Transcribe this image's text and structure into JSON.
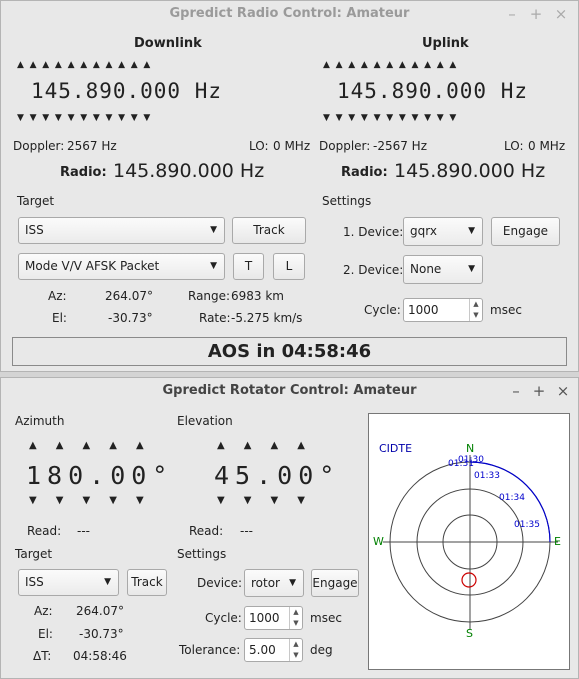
{
  "radio_window": {
    "title": "Gpredict Radio Control: Amateur",
    "controls": [
      "–",
      "+",
      "×"
    ],
    "downlink": {
      "heading": "Downlink",
      "frequency": "145.890.000 Hz",
      "doppler_label": "Doppler:",
      "doppler_value": "2567 Hz",
      "lo_label": "LO:",
      "lo_value": "0 MHz",
      "radio_label": "Radio:",
      "radio_value": "145.890.000 Hz"
    },
    "uplink": {
      "heading": "Uplink",
      "frequency": "145.890.000 Hz",
      "doppler_label": "Doppler:",
      "doppler_value": "-2567 Hz",
      "lo_label": "LO:",
      "lo_value": "0 MHz",
      "radio_label": "Radio:",
      "radio_value": "145.890.000 Hz"
    },
    "target": {
      "heading": "Target",
      "satellite": "ISS",
      "track_button": "Track",
      "transponder": "Mode V/V AFSK Packet",
      "t_button": "T",
      "l_button": "L",
      "az_label": "Az:",
      "az_value": "264.07°",
      "el_label": "El:",
      "el_value": "-30.73°",
      "range_label": "Range:",
      "range_value": "6983 km",
      "rate_label": "Rate:",
      "rate_value": "-5.275 km/s"
    },
    "settings": {
      "heading": "Settings",
      "device1_label": "1. Device:",
      "device1_value": "gqrx",
      "engage_button": "Engage",
      "device2_label": "2. Device:",
      "device2_value": "None",
      "cycle_label": "Cycle:",
      "cycle_value": "1000",
      "cycle_unit": "msec"
    },
    "status": "AOS in 04:58:46"
  },
  "rotator_window": {
    "title": "Gpredict Rotator Control: Amateur",
    "controls": [
      "–",
      "+",
      "×"
    ],
    "azimuth": {
      "heading": "Azimuth",
      "value": "180.00°",
      "read_label": "Read:",
      "read_value": "---"
    },
    "elevation": {
      "heading": "Elevation",
      "value": "45.00°",
      "read_label": "Read:",
      "read_value": "---"
    },
    "target": {
      "heading": "Target",
      "satellite": "ISS",
      "track_button": "Track",
      "az_label": "Az:",
      "az_value": "264.07°",
      "el_label": "El:",
      "el_value": "-30.73°",
      "dt_label": "ΔT:",
      "dt_value": "04:58:46"
    },
    "settings": {
      "heading": "Settings",
      "device_label": "Device:",
      "device_value": "rotor",
      "engage_button": "Engage",
      "cycle_label": "Cycle:",
      "cycle_value": "1000",
      "cycle_unit": "msec",
      "tolerance_label": "Tolerance:",
      "tolerance_value": "5.00",
      "tolerance_unit": "deg"
    },
    "polar": {
      "station": "CIDTE",
      "n": "N",
      "s": "S",
      "e": "E",
      "w": "W",
      "times": [
        "01:30",
        "01:31",
        "01:33",
        "01:34",
        "01:35"
      ],
      "colors": {
        "compass": "#008000",
        "track": "#0000cc",
        "target": "#cc0000"
      }
    }
  }
}
